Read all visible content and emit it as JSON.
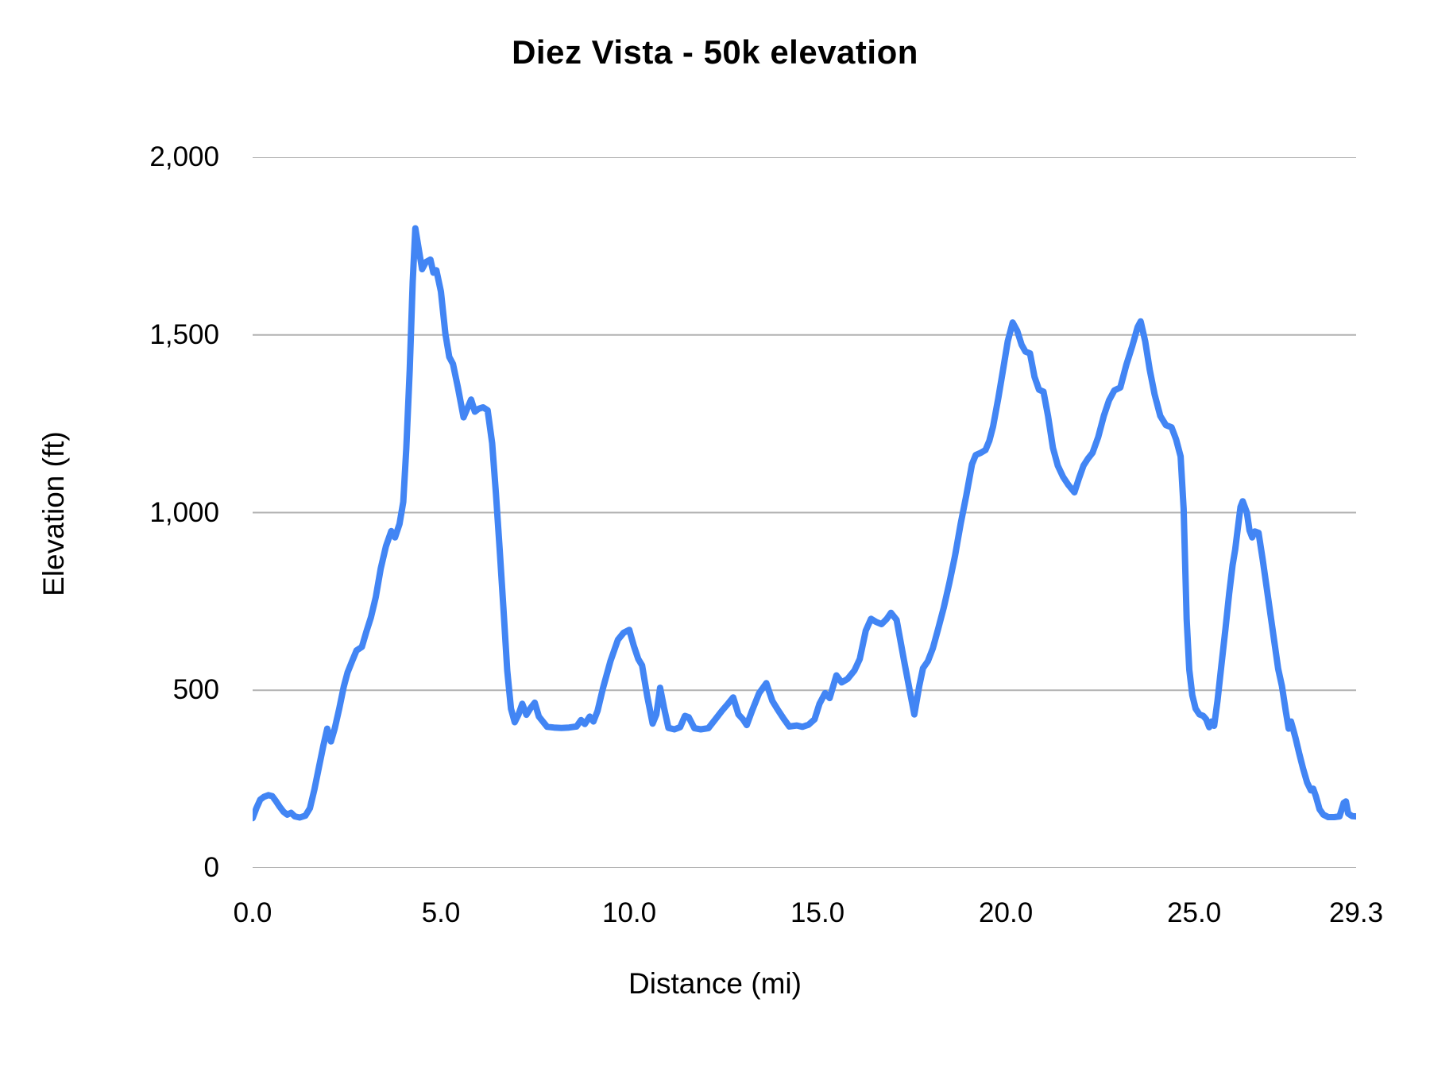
{
  "title": "Diez Vista - 50k elevation",
  "axis": {
    "x_title": "Distance (mi)",
    "y_title": "Elevation (ft)"
  },
  "colors": {
    "line": "#4285f4",
    "grid": "#b2b2b2",
    "text": "#000000",
    "background": "#ffffff"
  },
  "chart_data": {
    "type": "line",
    "title": "Diez Vista - 50k elevation",
    "xlabel": "Distance (mi)",
    "ylabel": "Elevation (ft)",
    "xlim": [
      0,
      29.3
    ],
    "ylim": [
      0,
      2000
    ],
    "grid": true,
    "legend": "none",
    "x_ticks": [
      {
        "value": 0,
        "label": "0.0"
      },
      {
        "value": 5,
        "label": "5.0"
      },
      {
        "value": 10,
        "label": "10.0"
      },
      {
        "value": 15,
        "label": "15.0"
      },
      {
        "value": 20,
        "label": "20.0"
      },
      {
        "value": 25,
        "label": "25.0"
      },
      {
        "value": 29.3,
        "label": "29.3"
      }
    ],
    "y_ticks": [
      {
        "value": 0,
        "label": "0"
      },
      {
        "value": 500,
        "label": "500"
      },
      {
        "value": 1000,
        "label": "1,000"
      },
      {
        "value": 1500,
        "label": "1,500"
      },
      {
        "value": 2000,
        "label": "2,000"
      }
    ],
    "series": [
      {
        "name": "elevation",
        "points": [
          [
            0,
            140
          ],
          [
            0.1,
            168
          ],
          [
            0.2,
            192
          ],
          [
            0.3,
            200
          ],
          [
            0.42,
            205
          ],
          [
            0.52,
            202
          ],
          [
            0.62,
            188
          ],
          [
            0.72,
            172
          ],
          [
            0.82,
            158
          ],
          [
            0.92,
            150
          ],
          [
            1.02,
            155
          ],
          [
            1.12,
            145
          ],
          [
            1.25,
            142
          ],
          [
            1.4,
            147
          ],
          [
            1.52,
            168
          ],
          [
            1.64,
            220
          ],
          [
            1.76,
            283
          ],
          [
            1.88,
            345
          ],
          [
            1.98,
            392
          ],
          [
            2.08,
            356
          ],
          [
            2.18,
            392
          ],
          [
            2.3,
            448
          ],
          [
            2.42,
            510
          ],
          [
            2.52,
            550
          ],
          [
            2.64,
            582
          ],
          [
            2.76,
            612
          ],
          [
            2.9,
            622
          ],
          [
            3.02,
            665
          ],
          [
            3.14,
            705
          ],
          [
            3.27,
            762
          ],
          [
            3.4,
            842
          ],
          [
            3.54,
            905
          ],
          [
            3.68,
            948
          ],
          [
            3.78,
            930
          ],
          [
            3.9,
            968
          ],
          [
            4.0,
            1030
          ],
          [
            4.08,
            1180
          ],
          [
            4.17,
            1400
          ],
          [
            4.25,
            1650
          ],
          [
            4.32,
            1800
          ],
          [
            4.4,
            1748
          ],
          [
            4.5,
            1685
          ],
          [
            4.6,
            1705
          ],
          [
            4.72,
            1712
          ],
          [
            4.8,
            1675
          ],
          [
            4.88,
            1682
          ],
          [
            5.0,
            1622
          ],
          [
            5.12,
            1502
          ],
          [
            5.22,
            1438
          ],
          [
            5.32,
            1418
          ],
          [
            5.45,
            1352
          ],
          [
            5.6,
            1268
          ],
          [
            5.72,
            1298
          ],
          [
            5.8,
            1318
          ],
          [
            5.9,
            1284
          ],
          [
            6.0,
            1292
          ],
          [
            6.12,
            1296
          ],
          [
            6.24,
            1288
          ],
          [
            6.36,
            1195
          ],
          [
            6.46,
            1055
          ],
          [
            6.56,
            895
          ],
          [
            6.66,
            730
          ],
          [
            6.76,
            555
          ],
          [
            6.86,
            448
          ],
          [
            6.96,
            410
          ],
          [
            7.06,
            432
          ],
          [
            7.16,
            462
          ],
          [
            7.27,
            431
          ],
          [
            7.38,
            450
          ],
          [
            7.49,
            465
          ],
          [
            7.6,
            426
          ],
          [
            7.72,
            410
          ],
          [
            7.82,
            397
          ],
          [
            8.0,
            395
          ],
          [
            8.2,
            394
          ],
          [
            8.4,
            395
          ],
          [
            8.6,
            398
          ],
          [
            8.72,
            416
          ],
          [
            8.82,
            405
          ],
          [
            8.95,
            426
          ],
          [
            9.05,
            412
          ],
          [
            9.16,
            442
          ],
          [
            9.3,
            505
          ],
          [
            9.5,
            582
          ],
          [
            9.7,
            642
          ],
          [
            9.85,
            662
          ],
          [
            10.0,
            670
          ],
          [
            10.12,
            625
          ],
          [
            10.24,
            588
          ],
          [
            10.34,
            570
          ],
          [
            10.48,
            482
          ],
          [
            10.62,
            406
          ],
          [
            10.72,
            432
          ],
          [
            10.82,
            507
          ],
          [
            10.92,
            452
          ],
          [
            11.04,
            394
          ],
          [
            11.2,
            390
          ],
          [
            11.35,
            396
          ],
          [
            11.48,
            428
          ],
          [
            11.58,
            424
          ],
          [
            11.73,
            393
          ],
          [
            11.9,
            390
          ],
          [
            12.1,
            393
          ],
          [
            12.3,
            420
          ],
          [
            12.46,
            442
          ],
          [
            12.62,
            462
          ],
          [
            12.76,
            480
          ],
          [
            12.9,
            432
          ],
          [
            13.02,
            418
          ],
          [
            13.12,
            402
          ],
          [
            13.26,
            442
          ],
          [
            13.45,
            492
          ],
          [
            13.64,
            520
          ],
          [
            13.8,
            470
          ],
          [
            13.94,
            446
          ],
          [
            14.1,
            420
          ],
          [
            14.25,
            398
          ],
          [
            14.45,
            401
          ],
          [
            14.6,
            397
          ],
          [
            14.76,
            403
          ],
          [
            14.92,
            418
          ],
          [
            15.05,
            462
          ],
          [
            15.2,
            492
          ],
          [
            15.32,
            478
          ],
          [
            15.5,
            542
          ],
          [
            15.64,
            522
          ],
          [
            15.8,
            532
          ],
          [
            15.98,
            556
          ],
          [
            16.12,
            588
          ],
          [
            16.28,
            668
          ],
          [
            16.42,
            701
          ],
          [
            16.56,
            692
          ],
          [
            16.7,
            686
          ],
          [
            16.84,
            701
          ],
          [
            16.95,
            718
          ],
          [
            17.1,
            698
          ],
          [
            17.3,
            582
          ],
          [
            17.45,
            498
          ],
          [
            17.57,
            432
          ],
          [
            17.7,
            512
          ],
          [
            17.8,
            562
          ],
          [
            17.93,
            582
          ],
          [
            18.06,
            618
          ],
          [
            18.2,
            672
          ],
          [
            18.35,
            732
          ],
          [
            18.5,
            802
          ],
          [
            18.65,
            878
          ],
          [
            18.8,
            968
          ],
          [
            18.95,
            1048
          ],
          [
            19.1,
            1136
          ],
          [
            19.2,
            1162
          ],
          [
            19.33,
            1168
          ],
          [
            19.46,
            1176
          ],
          [
            19.56,
            1202
          ],
          [
            19.66,
            1242
          ],
          [
            19.8,
            1322
          ],
          [
            19.92,
            1398
          ],
          [
            20.05,
            1482
          ],
          [
            20.18,
            1535
          ],
          [
            20.3,
            1512
          ],
          [
            20.42,
            1472
          ],
          [
            20.52,
            1453
          ],
          [
            20.64,
            1448
          ],
          [
            20.76,
            1382
          ],
          [
            20.88,
            1346
          ],
          [
            21.0,
            1340
          ],
          [
            21.12,
            1272
          ],
          [
            21.25,
            1182
          ],
          [
            21.38,
            1132
          ],
          [
            21.52,
            1100
          ],
          [
            21.66,
            1078
          ],
          [
            21.82,
            1057
          ],
          [
            21.94,
            1096
          ],
          [
            22.06,
            1132
          ],
          [
            22.18,
            1152
          ],
          [
            22.3,
            1168
          ],
          [
            22.45,
            1212
          ],
          [
            22.6,
            1272
          ],
          [
            22.74,
            1316
          ],
          [
            22.88,
            1344
          ],
          [
            23.04,
            1352
          ],
          [
            23.2,
            1416
          ],
          [
            23.36,
            1470
          ],
          [
            23.5,
            1522
          ],
          [
            23.58,
            1538
          ],
          [
            23.7,
            1482
          ],
          [
            23.82,
            1402
          ],
          [
            23.95,
            1332
          ],
          [
            24.1,
            1272
          ],
          [
            24.25,
            1246
          ],
          [
            24.4,
            1240
          ],
          [
            24.52,
            1206
          ],
          [
            24.64,
            1158
          ],
          [
            24.72,
            1010
          ],
          [
            24.8,
            700
          ],
          [
            24.87,
            558
          ],
          [
            24.95,
            486
          ],
          [
            25.04,
            448
          ],
          [
            25.14,
            432
          ],
          [
            25.24,
            428
          ],
          [
            25.32,
            418
          ],
          [
            25.4,
            396
          ],
          [
            25.46,
            412
          ],
          [
            25.53,
            400
          ],
          [
            25.62,
            470
          ],
          [
            25.72,
            568
          ],
          [
            25.83,
            672
          ],
          [
            25.93,
            772
          ],
          [
            26.02,
            852
          ],
          [
            26.09,
            896
          ],
          [
            26.16,
            956
          ],
          [
            26.23,
            1016
          ],
          [
            26.29,
            1032
          ],
          [
            26.4,
            1000
          ],
          [
            26.47,
            950
          ],
          [
            26.54,
            930
          ],
          [
            26.61,
            947
          ],
          [
            26.71,
            943
          ],
          [
            26.82,
            868
          ],
          [
            26.93,
            786
          ],
          [
            27.04,
            702
          ],
          [
            27.15,
            620
          ],
          [
            27.23,
            560
          ],
          [
            27.33,
            512
          ],
          [
            27.43,
            442
          ],
          [
            27.51,
            392
          ],
          [
            27.57,
            412
          ],
          [
            27.63,
            390
          ],
          [
            27.69,
            366
          ],
          [
            27.79,
            322
          ],
          [
            27.89,
            280
          ],
          [
            28.0,
            240
          ],
          [
            28.1,
            218
          ],
          [
            28.16,
            223
          ],
          [
            28.23,
            202
          ],
          [
            28.33,
            165
          ],
          [
            28.43,
            150
          ],
          [
            28.56,
            143
          ],
          [
            28.72,
            143
          ],
          [
            28.86,
            145
          ],
          [
            28.97,
            183
          ],
          [
            29.03,
            187
          ],
          [
            29.09,
            153
          ],
          [
            29.19,
            146
          ],
          [
            29.3,
            145
          ]
        ]
      }
    ]
  }
}
